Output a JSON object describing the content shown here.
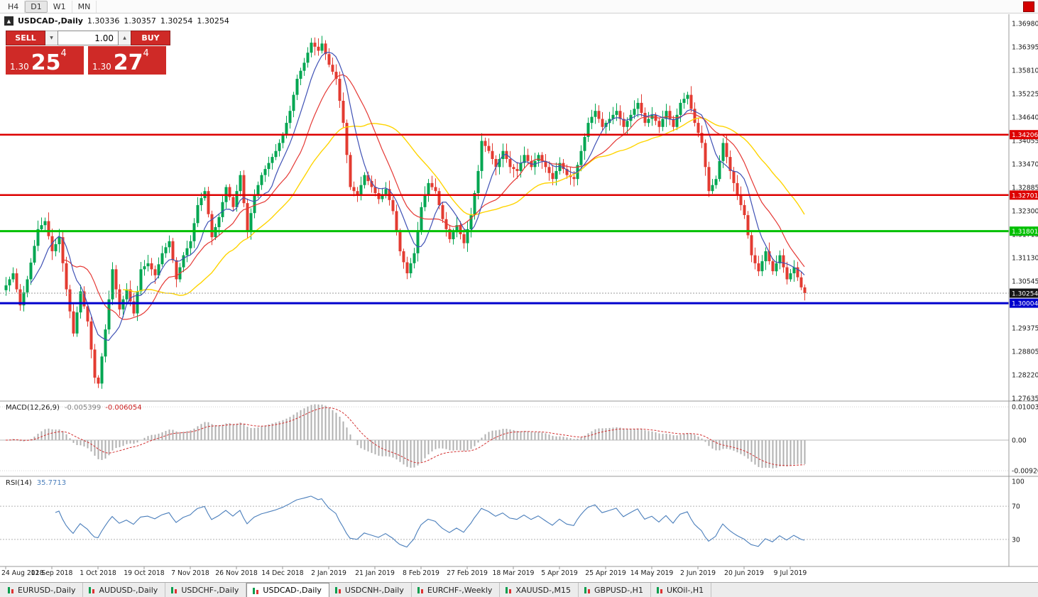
{
  "toolbar": {
    "periods": [
      {
        "label": "H4",
        "active": false
      },
      {
        "label": "D1",
        "active": true
      },
      {
        "label": "W1",
        "active": false
      },
      {
        "label": "MN",
        "active": false
      }
    ]
  },
  "icons": {
    "toggle": "▲",
    "spin_up": "▲",
    "spin_down": "▼",
    "mini_chart": "candlestick-bars"
  },
  "chart_header": {
    "symbol": "USDCAD-,Daily",
    "open": "1.30336",
    "high": "1.30357",
    "low": "1.30254",
    "close": "1.30254"
  },
  "one_click": {
    "sell_label": "SELL",
    "buy_label": "BUY",
    "lot": "1.00",
    "sell_small": "1.30",
    "sell_big": "25",
    "sell_sup": "4",
    "buy_small": "1.30",
    "buy_big": "27",
    "buy_sup": "4"
  },
  "colors": {
    "panel_red": "#cf2a27",
    "corner_red": "#d40000",
    "tag_black": "#151515",
    "up": "#00a651",
    "down": "#e33b31",
    "ma_fast": "#3f51b5",
    "ma_mid": "#e53935",
    "ma_slow": "#ffd400",
    "macd_hist": "#b0b0b0",
    "macd_signal": "#d23030",
    "rsi_line": "#4a7ebb"
  },
  "price_axis": {
    "labels": [
      "1.36980",
      "1.36395",
      "1.35810",
      "1.35225",
      "1.34640",
      "1.34055",
      "1.33470",
      "1.32885",
      "1.32300",
      "1.31715",
      "1.31130",
      "1.30545",
      "1.29960",
      "1.29375",
      "1.28805",
      "1.28220",
      "1.27635"
    ]
  },
  "hlines": [
    {
      "price": 1.34206,
      "label": "1.34206",
      "color": "#dd0000",
      "width": 2.5
    },
    {
      "price": 1.32701,
      "label": "1.32701",
      "color": "#dd0000",
      "width": 2.5
    },
    {
      "price": 1.31801,
      "label": "1.31801",
      "color": "#00c000",
      "width": 3
    },
    {
      "price": 1.30004,
      "label": "1.30004",
      "color": "#0000cd",
      "width": 3
    }
  ],
  "current_price": {
    "value": 1.30254,
    "label": "1.30254"
  },
  "indicators": {
    "macd": {
      "name": "MACD(12,26,9)",
      "v1": "-0.005399",
      "v2": "-0.006054",
      "axis": [
        {
          "v": 0.010031,
          "label": "0.010031"
        },
        {
          "v": 0,
          "label": "0.00"
        },
        {
          "v": -0.0092,
          "label": "-0.00920"
        }
      ]
    },
    "rsi": {
      "name": "RSI(14)",
      "value": "35.7713",
      "levels": [
        70,
        30
      ],
      "axis": [
        {
          "v": 100,
          "label": "100"
        },
        {
          "v": 70,
          "label": "70"
        },
        {
          "v": 30,
          "label": "30"
        }
      ]
    }
  },
  "date_axis": {
    "labels": [
      "24 Aug 2018",
      "12 Sep 2018",
      "1 Oct 2018",
      "19 Oct 2018",
      "7 Nov 2018",
      "26 Nov 2018",
      "14 Dec 2018",
      "2 Jan 2019",
      "21 Jan 2019",
      "8 Feb 2019",
      "27 Feb 2019",
      "18 Mar 2019",
      "5 Apr 2019",
      "25 Apr 2019",
      "14 May 2019",
      "2 Jun 2019",
      "20 Jun 2019",
      "9 Jul 2019"
    ]
  },
  "tabs": [
    {
      "label": "EURUSD-,Daily",
      "active": false
    },
    {
      "label": "AUDUSD-,Daily",
      "active": false
    },
    {
      "label": "USDCHF-,Daily",
      "active": false
    },
    {
      "label": "USDCAD-,Daily",
      "active": true
    },
    {
      "label": "USDCNH-,Daily",
      "active": false
    },
    {
      "label": "EURCHF-,Weekly",
      "active": false
    },
    {
      "label": "XAUUSD-,M15",
      "active": false
    },
    {
      "label": "GBPUSD-,H1",
      "active": false
    },
    {
      "label": "UKOil-,H1",
      "active": false
    }
  ],
  "chart_data": {
    "type": "candlestick",
    "symbol": "USDCAD",
    "timeframe": "Daily",
    "x_range": [
      "24 Aug 2018",
      "16 Jul 2019"
    ],
    "y_range": [
      1.27635,
      1.3698
    ],
    "candles_count": 226,
    "close_anchors": [
      [
        0,
        1.3045
      ],
      [
        2,
        1.3075
      ],
      [
        4,
        1.2995
      ],
      [
        6,
        1.306
      ],
      [
        9,
        1.3185
      ],
      [
        11,
        1.3205
      ],
      [
        13,
        1.313
      ],
      [
        15,
        1.3165
      ],
      [
        17,
        1.3035
      ],
      [
        19,
        1.2925
      ],
      [
        21,
        1.303
      ],
      [
        23,
        1.2955
      ],
      [
        25,
        1.2815
      ],
      [
        26,
        1.28
      ],
      [
        28,
        1.2935
      ],
      [
        30,
        1.3085
      ],
      [
        32,
        1.2985
      ],
      [
        34,
        1.3035
      ],
      [
        36,
        1.2975
      ],
      [
        38,
        1.3085
      ],
      [
        40,
        1.31
      ],
      [
        42,
        1.307
      ],
      [
        44,
        1.3125
      ],
      [
        46,
        1.3155
      ],
      [
        48,
        1.306
      ],
      [
        50,
        1.312
      ],
      [
        52,
        1.3155
      ],
      [
        54,
        1.3245
      ],
      [
        56,
        1.328
      ],
      [
        58,
        1.3165
      ],
      [
        60,
        1.3215
      ],
      [
        62,
        1.329
      ],
      [
        64,
        1.324
      ],
      [
        66,
        1.332
      ],
      [
        68,
        1.318
      ],
      [
        70,
        1.327
      ],
      [
        72,
        1.332
      ],
      [
        74,
        1.335
      ],
      [
        76,
        1.338
      ],
      [
        78,
        1.342
      ],
      [
        80,
        1.348
      ],
      [
        82,
        1.356
      ],
      [
        84,
        1.36
      ],
      [
        86,
        1.365
      ],
      [
        88,
        1.363
      ],
      [
        89,
        1.3648
      ],
      [
        91,
        1.3595
      ],
      [
        93,
        1.356
      ],
      [
        95,
        1.345
      ],
      [
        97,
        1.329
      ],
      [
        99,
        1.327
      ],
      [
        101,
        1.332
      ],
      [
        103,
        1.329
      ],
      [
        105,
        1.326
      ],
      [
        107,
        1.3285
      ],
      [
        109,
        1.323
      ],
      [
        111,
        1.313
      ],
      [
        113,
        1.3075
      ],
      [
        115,
        1.3125
      ],
      [
        117,
        1.324
      ],
      [
        119,
        1.33
      ],
      [
        121,
        1.328
      ],
      [
        123,
        1.321
      ],
      [
        125,
        1.316
      ],
      [
        127,
        1.3195
      ],
      [
        129,
        1.315
      ],
      [
        131,
        1.322
      ],
      [
        133,
        1.333
      ],
      [
        134,
        1.3405
      ],
      [
        136,
        1.338
      ],
      [
        138,
        1.334
      ],
      [
        140,
        1.338
      ],
      [
        142,
        1.334
      ],
      [
        144,
        1.333
      ],
      [
        146,
        1.337
      ],
      [
        148,
        1.334
      ],
      [
        150,
        1.337
      ],
      [
        152,
        1.334
      ],
      [
        154,
        1.331
      ],
      [
        156,
        1.335
      ],
      [
        158,
        1.332
      ],
      [
        160,
        1.331
      ],
      [
        162,
        1.338
      ],
      [
        164,
        1.345
      ],
      [
        166,
        1.348
      ],
      [
        168,
        1.344
      ],
      [
        170,
        1.346
      ],
      [
        172,
        1.348
      ],
      [
        174,
        1.344
      ],
      [
        176,
        1.347
      ],
      [
        178,
        1.35
      ],
      [
        180,
        1.345
      ],
      [
        182,
        1.347
      ],
      [
        184,
        1.344
      ],
      [
        186,
        1.348
      ],
      [
        188,
        1.344
      ],
      [
        190,
        1.35
      ],
      [
        192,
        1.352
      ],
      [
        194,
        1.345
      ],
      [
        196,
        1.34
      ],
      [
        198,
        1.328
      ],
      [
        200,
        1.331
      ],
      [
        202,
        1.34
      ],
      [
        204,
        1.333
      ],
      [
        206,
        1.327
      ],
      [
        208,
        1.322
      ],
      [
        210,
        1.312
      ],
      [
        212,
        1.308
      ],
      [
        214,
        1.313
      ],
      [
        216,
        1.308
      ],
      [
        218,
        1.312
      ],
      [
        220,
        1.306
      ],
      [
        222,
        1.309
      ],
      [
        224,
        1.304
      ],
      [
        225,
        1.30254
      ]
    ],
    "wick": {
      "min": 0.0006,
      "var": 0.0016
    },
    "ma_periods": {
      "fast": 8,
      "mid": 17,
      "slow": 34
    },
    "macd_params": [
      12,
      26,
      9
    ],
    "rsi_params": [
      14
    ]
  }
}
